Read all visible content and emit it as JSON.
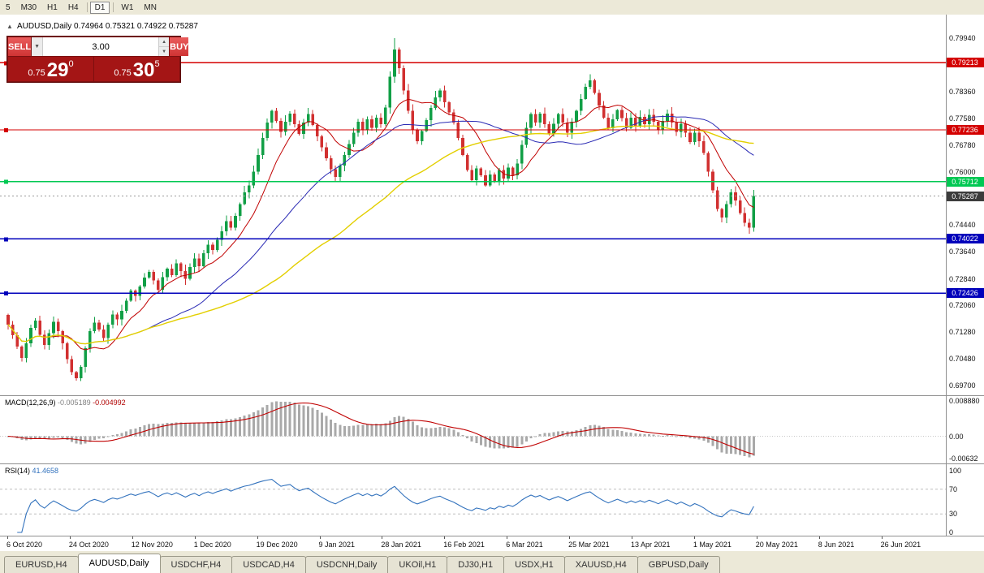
{
  "toolbar": {
    "timeframes": [
      {
        "label": "5",
        "active": false
      },
      {
        "label": "M30",
        "active": false
      },
      {
        "label": "H1",
        "active": false
      },
      {
        "label": "H4",
        "active": false
      },
      {
        "label": "D1",
        "active": true
      },
      {
        "label": "W1",
        "active": false
      },
      {
        "label": "MN",
        "active": false
      }
    ]
  },
  "chart": {
    "info_line": "AUDUSD,Daily 0.74964 0.75321 0.74922 0.75287",
    "trade_panel": {
      "sell_label": "SELL",
      "buy_label": "BUY",
      "volume": "3.00",
      "sell_price": {
        "prefix": "0.75",
        "big": "29",
        "sup": "0"
      },
      "buy_price": {
        "prefix": "0.75",
        "big": "30",
        "sup": "5"
      }
    },
    "price_axis": [
      {
        "value": 0.7994,
        "label": "0.79940"
      },
      {
        "value": 0.7836,
        "label": "0.78360"
      },
      {
        "value": 0.7758,
        "label": "0.77580"
      },
      {
        "value": 0.7678,
        "label": "0.76780"
      },
      {
        "value": 0.76,
        "label": "0.76000"
      },
      {
        "value": 0.7444,
        "label": "0.74440"
      },
      {
        "value": 0.7364,
        "label": "0.73640"
      },
      {
        "value": 0.7284,
        "label": "0.72840"
      },
      {
        "value": 0.7206,
        "label": "0.72060"
      },
      {
        "value": 0.7128,
        "label": "0.71280"
      },
      {
        "value": 0.7048,
        "label": "0.70480"
      },
      {
        "value": 0.697,
        "label": "0.69700"
      }
    ],
    "hlines": [
      {
        "price": 0.79213,
        "label": "0.79213",
        "color": "#d40000"
      },
      {
        "price": 0.77236,
        "label": "0.77236",
        "color": "#d40000"
      },
      {
        "price": 0.75712,
        "label": "0.75712",
        "color": "#00c853"
      },
      {
        "price": 0.74022,
        "label": "0.74022",
        "color": "#0000bb"
      },
      {
        "price": 0.72426,
        "label": "0.72426",
        "color": "#0000bb"
      }
    ],
    "current_price": {
      "value": 0.75287,
      "label": "0.75287",
      "bg": "#3c3c3c"
    }
  },
  "chart_data": {
    "type": "candlestick",
    "symbol": "AUDUSD",
    "timeframe": "Daily",
    "last_ohlc": {
      "open": 0.74964,
      "high": 0.75321,
      "low": 0.74922,
      "close": 0.75287
    },
    "colors": {
      "up": "#119f46",
      "down": "#d13030"
    },
    "candles": {
      "first_open": 0.7178,
      "closes": [
        0.715,
        0.7118,
        0.7085,
        0.7052,
        0.7095,
        0.714,
        0.7162,
        0.712,
        0.709,
        0.7125,
        0.7158,
        0.713,
        0.7095,
        0.7048,
        0.701,
        0.6992,
        0.7025,
        0.708,
        0.713,
        0.7155,
        0.7135,
        0.711,
        0.715,
        0.718,
        0.7165,
        0.719,
        0.722,
        0.725,
        0.7235,
        0.7262,
        0.7288,
        0.7305,
        0.728,
        0.7252,
        0.729,
        0.7315,
        0.7295,
        0.733,
        0.7308,
        0.7285,
        0.732,
        0.7345,
        0.7322,
        0.736,
        0.7385,
        0.737,
        0.74,
        0.7425,
        0.7455,
        0.7435,
        0.747,
        0.7505,
        0.754,
        0.756,
        0.76,
        0.765,
        0.77,
        0.7745,
        0.778,
        0.775,
        0.7718,
        0.7748,
        0.7772,
        0.774,
        0.7712,
        0.7745,
        0.777,
        0.7738,
        0.7705,
        0.7672,
        0.764,
        0.7608,
        0.7585,
        0.7618,
        0.765,
        0.7682,
        0.7715,
        0.7748,
        0.7722,
        0.7755,
        0.773,
        0.776,
        0.774,
        0.779,
        0.788,
        0.796,
        0.7905,
        0.784,
        0.778,
        0.7725,
        0.769,
        0.772,
        0.7752,
        0.7788,
        0.782,
        0.784,
        0.7805,
        0.7775,
        0.7745,
        0.77,
        0.765,
        0.7605,
        0.7575,
        0.761,
        0.759,
        0.756,
        0.7592,
        0.757,
        0.7605,
        0.758,
        0.7612,
        0.759,
        0.7625,
        0.768,
        0.773,
        0.777,
        0.7745,
        0.7772,
        0.774,
        0.7712,
        0.7742,
        0.777,
        0.7745,
        0.7715,
        0.7748,
        0.778,
        0.7815,
        0.785,
        0.787,
        0.7832,
        0.7795,
        0.776,
        0.7728,
        0.7755,
        0.7782,
        0.7758,
        0.773,
        0.776,
        0.7735,
        0.7762,
        0.774,
        0.7768,
        0.7748,
        0.7722,
        0.775,
        0.7772,
        0.7745,
        0.7718,
        0.7742,
        0.7715,
        0.7688,
        0.7715,
        0.769,
        0.7655,
        0.76,
        0.7545,
        0.749,
        0.7465,
        0.7505,
        0.754,
        0.7515,
        0.7478,
        0.745,
        0.7435,
        0.75287
      ],
      "overrides": {
        "15": {
          "l": 0.6985
        },
        "85": {
          "h": 0.7994
        },
        "128": {
          "h": 0.7888
        },
        "163": {
          "l": 0.7418
        }
      }
    },
    "moving_averages": [
      {
        "name": "fast-ma",
        "period": 10,
        "color": "#c00000",
        "width": 1
      },
      {
        "name": "medium-ma",
        "period": 30,
        "color": "#2a2ab4",
        "width": 1
      },
      {
        "name": "slow-ma",
        "period": 60,
        "color": "#e3cf00",
        "width": 1.4
      }
    ],
    "indicators": {
      "macd": {
        "fast": 12,
        "slow": 26,
        "signal": 9
      },
      "rsi": {
        "period": 14
      }
    }
  },
  "macd_panel": {
    "label": "MACD(12,26,9)",
    "value_main": "-0.005189",
    "value_signal": "-0.004992",
    "axis": [
      {
        "label": "0.008880",
        "pin": "top"
      },
      {
        "label": "0.00",
        "pin": "zero"
      },
      {
        "label": "-0.00632",
        "pin": "bottom"
      }
    ]
  },
  "rsi_panel": {
    "label": "RSI(14)",
    "value": "41.4658",
    "levels": [
      70,
      30
    ],
    "axis": [
      {
        "value": 100,
        "label": "100"
      },
      {
        "value": 70,
        "label": "70"
      },
      {
        "value": 30,
        "label": "30"
      },
      {
        "value": 0,
        "label": "0"
      }
    ]
  },
  "time_axis": {
    "labels": [
      "6 Oct 2020",
      "24 Oct 2020",
      "12 Nov 2020",
      "1 Dec 2020",
      "19 Dec 2020",
      "9 Jan 2021",
      "28 Jan 2021",
      "16 Feb 2021",
      "6 Mar 2021",
      "25 Mar 2021",
      "13 Apr 2021",
      "1 May 2021",
      "20 May 2021",
      "8 Jun 2021",
      "26 Jun 2021"
    ]
  },
  "tabs": [
    {
      "label": "EURUSD,H4",
      "active": false
    },
    {
      "label": "AUDUSD,Daily",
      "active": true
    },
    {
      "label": "USDCHF,H4",
      "active": false
    },
    {
      "label": "USDCAD,H4",
      "active": false
    },
    {
      "label": "USDCNH,Daily",
      "active": false
    },
    {
      "label": "UKOil,H1",
      "active": false
    },
    {
      "label": "DJ30,H1",
      "active": false
    },
    {
      "label": "USDX,H1",
      "active": false
    },
    {
      "label": "XAUUSD,H4",
      "active": false
    },
    {
      "label": "GBPUSD,Daily",
      "active": false
    }
  ]
}
